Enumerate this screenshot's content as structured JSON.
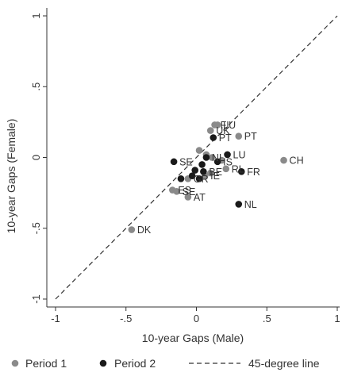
{
  "chart_data": {
    "type": "scatter",
    "title": "",
    "xlabel": "10-year Gaps (Male)",
    "ylabel": "10-year Gaps (Female)",
    "xlim": [
      -1,
      1
    ],
    "ylim": [
      -1,
      1
    ],
    "xticks": [
      -1,
      -0.5,
      0,
      0.5,
      1
    ],
    "xtick_labels": [
      "-1",
      "-.5",
      "0",
      ".5",
      "1"
    ],
    "yticks": [
      -1,
      -0.5,
      0,
      0.5,
      1
    ],
    "ytick_labels": [
      "-1",
      "-.5",
      "0",
      ".5",
      "1"
    ],
    "grid": false,
    "legend_position": "bottom",
    "reference_line": {
      "name": "45-degree line",
      "style": "dashed",
      "x": [
        -1,
        1
      ],
      "y": [
        -1,
        1
      ]
    },
    "series": [
      {
        "name": "Period 1",
        "color": "#8a8a8a",
        "points": [
          {
            "x": 0.13,
            "y": 0.23,
            "label": "FI"
          },
          {
            "x": 0.15,
            "y": 0.23,
            "label": "LU"
          },
          {
            "x": 0.1,
            "y": 0.19,
            "label": "UK"
          },
          {
            "x": 0.3,
            "y": 0.15,
            "label": "PT"
          },
          {
            "x": 0.62,
            "y": -0.02,
            "label": "CH"
          },
          {
            "x": 0.02,
            "y": 0.05,
            "label": ""
          },
          {
            "x": 0.07,
            "y": 0.02,
            "label": ""
          },
          {
            "x": 0.11,
            "y": 0.0,
            "label": ""
          },
          {
            "x": 0.18,
            "y": -0.02,
            "label": ""
          },
          {
            "x": 0.21,
            "y": -0.08,
            "label": "RL"
          },
          {
            "x": 0.1,
            "y": -0.11,
            "label": ""
          },
          {
            "x": 0.06,
            "y": -0.13,
            "label": "IE"
          },
          {
            "x": -0.06,
            "y": -0.15,
            "label": "GR"
          },
          {
            "x": -0.17,
            "y": -0.23,
            "label": "ES"
          },
          {
            "x": -0.14,
            "y": -0.24,
            "label": "SE"
          },
          {
            "x": -0.06,
            "y": -0.28,
            "label": "AT"
          },
          {
            "x": -0.46,
            "y": -0.51,
            "label": "DK"
          }
        ]
      },
      {
        "name": "Period 2",
        "color": "#1a1a1a",
        "points": [
          {
            "x": 0.12,
            "y": 0.14,
            "label": "PT"
          },
          {
            "x": 0.22,
            "y": 0.02,
            "label": "LU"
          },
          {
            "x": 0.07,
            "y": 0.0,
            "label": "NL"
          },
          {
            "x": 0.15,
            "y": -0.03,
            "label": "IS"
          },
          {
            "x": -0.16,
            "y": -0.03,
            "label": "SE"
          },
          {
            "x": 0.04,
            "y": -0.05,
            "label": ""
          },
          {
            "x": -0.01,
            "y": -0.09,
            "label": ""
          },
          {
            "x": 0.05,
            "y": -0.1,
            "label": "BE"
          },
          {
            "x": 0.32,
            "y": -0.1,
            "label": "FR"
          },
          {
            "x": -0.03,
            "y": -0.13,
            "label": ""
          },
          {
            "x": 0.02,
            "y": -0.15,
            "label": ""
          },
          {
            "x": -0.11,
            "y": -0.15,
            "label": ""
          },
          {
            "x": 0.3,
            "y": -0.33,
            "label": "NL"
          }
        ]
      }
    ]
  }
}
